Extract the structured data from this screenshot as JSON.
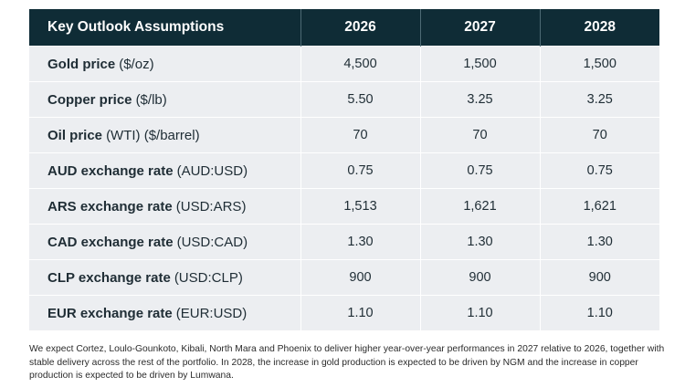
{
  "table": {
    "headers": [
      "Key Outlook Assumptions",
      "2026",
      "2027",
      "2028"
    ],
    "rows": [
      {
        "label": "Gold price",
        "unit": "($/oz)",
        "values": [
          "4,500",
          "1,500",
          "1,500"
        ]
      },
      {
        "label": "Copper price",
        "unit": "($/lb)",
        "values": [
          "5.50",
          "3.25",
          "3.25"
        ]
      },
      {
        "label": "Oil price",
        "unit": "(WTI) ($/barrel)",
        "values": [
          "70",
          "70",
          "70"
        ]
      },
      {
        "label": "AUD exchange rate",
        "unit": "(AUD:USD)",
        "values": [
          "0.75",
          "0.75",
          "0.75"
        ]
      },
      {
        "label": "ARS exchange rate",
        "unit": "(USD:ARS)",
        "values": [
          "1,513",
          "1,621",
          "1,621"
        ]
      },
      {
        "label": "CAD exchange rate",
        "unit": "(USD:CAD)",
        "values": [
          "1.30",
          "1.30",
          "1.30"
        ]
      },
      {
        "label": "CLP exchange rate",
        "unit": "(USD:CLP)",
        "values": [
          "900",
          "900",
          "900"
        ]
      },
      {
        "label": "EUR exchange rate",
        "unit": "(EUR:USD)",
        "values": [
          "1.10",
          "1.10",
          "1.10"
        ]
      }
    ]
  },
  "footnote": "We expect Cortez, Loulo-Gounkoto, Kibali, North Mara and Phoenix to deliver higher year-over-year performances in 2027 relative to 2026, together with stable delivery across the rest of the portfolio. In 2028, the increase in gold production is expected to be driven by NGM and the increase in copper production is expected to be driven by Lumwana.",
  "colors": {
    "header_bg": "#0f2c36",
    "row_bg": "#eceef1",
    "text": "#1f2d35"
  }
}
